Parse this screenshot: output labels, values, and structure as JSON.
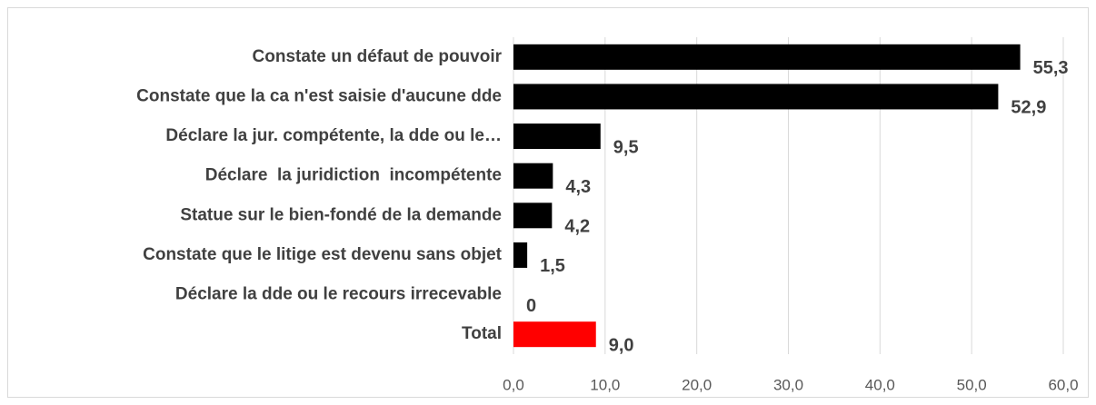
{
  "chart_data": {
    "type": "barh",
    "categories": [
      "Constate un défaut de pouvoir",
      "Constate que la ca n'est saisie d'aucune dde",
      "Déclare la jur. compétente, la dde ou le…",
      "Déclare  la juridiction  incompétente",
      "Statue sur le bien-fondé de la demande",
      "Constate que le litige est devenu sans objet",
      "Déclare la dde ou le recours irrecevable",
      "Total"
    ],
    "values": [
      55.3,
      52.9,
      9.5,
      4.3,
      4.2,
      1.5,
      0,
      9.0
    ],
    "value_labels": [
      "55,3",
      "52,9",
      "9,5",
      "4,3",
      "4,2",
      "1,5",
      "0",
      "9,0"
    ],
    "colors": [
      "#000000",
      "#000000",
      "#000000",
      "#000000",
      "#000000",
      "#000000",
      "#000000",
      "#ff0000"
    ],
    "xlim": [
      0,
      60
    ],
    "xticks": [
      {
        "value": 0,
        "label": "0,0"
      },
      {
        "value": 10,
        "label": "10,0"
      },
      {
        "value": 20,
        "label": "20,0"
      },
      {
        "value": 30,
        "label": "30,0"
      },
      {
        "value": 40,
        "label": "40,0"
      },
      {
        "value": 50,
        "label": "50,0"
      },
      {
        "value": 60,
        "label": "60,0"
      }
    ],
    "grid": true
  }
}
